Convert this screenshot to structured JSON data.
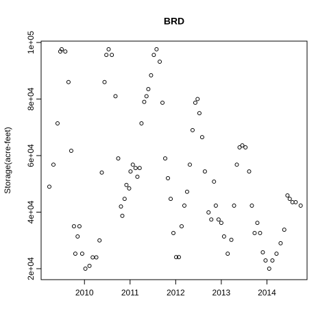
{
  "chart_data": {
    "type": "scatter",
    "title": "BRD",
    "y_label": "Storage(acre-feet)",
    "xlim": [
      2009.05,
      2014.88
    ],
    "ylim": [
      16120,
      100480
    ],
    "xticks": [
      2010,
      2011,
      2012,
      2013,
      2014
    ],
    "yticks": [
      {
        "value": 20000,
        "label": "2e+04"
      },
      {
        "value": 40000,
        "label": "4e+04"
      },
      {
        "value": 60000,
        "label": "6e+04"
      },
      {
        "value": 80000,
        "label": "8e+04"
      },
      {
        "value": 100000,
        "label": "1e+05"
      }
    ],
    "color": "#000000",
    "x": [
      2009.23,
      2009.32,
      2009.41,
      2009.47,
      2009.5,
      2009.58,
      2009.65,
      2009.71,
      2009.77,
      2009.8,
      2009.85,
      2009.89,
      2009.95,
      2010.02,
      2010.11,
      2010.18,
      2010.26,
      2010.33,
      2010.38,
      2010.44,
      2010.48,
      2010.53,
      2010.6,
      2010.68,
      2010.74,
      2010.8,
      2010.83,
      2010.88,
      2010.92,
      2010.98,
      2011.01,
      2011.06,
      2011.12,
      2011.16,
      2011.21,
      2011.25,
      2011.31,
      2011.36,
      2011.4,
      2011.46,
      2011.52,
      2011.58,
      2011.65,
      2011.71,
      2011.77,
      2011.83,
      2011.89,
      2011.95,
      2012.01,
      2012.07,
      2012.13,
      2012.19,
      2012.25,
      2012.31,
      2012.37,
      2012.43,
      2012.48,
      2012.52,
      2012.58,
      2012.64,
      2012.72,
      2012.78,
      2012.84,
      2012.88,
      2012.94,
      2013.0,
      2013.06,
      2013.14,
      2013.22,
      2013.28,
      2013.34,
      2013.4,
      2013.46,
      2013.53,
      2013.61,
      2013.67,
      2013.73,
      2013.79,
      2013.85,
      2013.91,
      2013.97,
      2014.05,
      2014.12,
      2014.21,
      2014.3,
      2014.38,
      2014.45,
      2014.5,
      2014.56,
      2014.63,
      2014.74
    ],
    "values": [
      49000,
      56800,
      71400,
      96800,
      97600,
      96800,
      86000,
      61700,
      35000,
      25300,
      31400,
      35000,
      25300,
      20000,
      21000,
      24000,
      24000,
      30000,
      54000,
      86000,
      95600,
      97600,
      95600,
      81000,
      59000,
      42000,
      38700,
      44700,
      49600,
      48400,
      54400,
      56800,
      55600,
      52500,
      55600,
      71400,
      79000,
      81000,
      83500,
      88400,
      95600,
      97600,
      93200,
      78700,
      59000,
      52000,
      44700,
      32600,
      24100,
      24100,
      35000,
      42300,
      47200,
      56800,
      69000,
      78700,
      80000,
      75000,
      66500,
      54400,
      39900,
      37400,
      50800,
      42300,
      37400,
      36200,
      31400,
      25300,
      30200,
      42300,
      56800,
      62900,
      63600,
      62900,
      54400,
      42300,
      32600,
      36200,
      32600,
      25800,
      22900,
      20000,
      22900,
      25300,
      29000,
      33800,
      45900,
      44700,
      43500,
      43500,
      42300
    ]
  }
}
